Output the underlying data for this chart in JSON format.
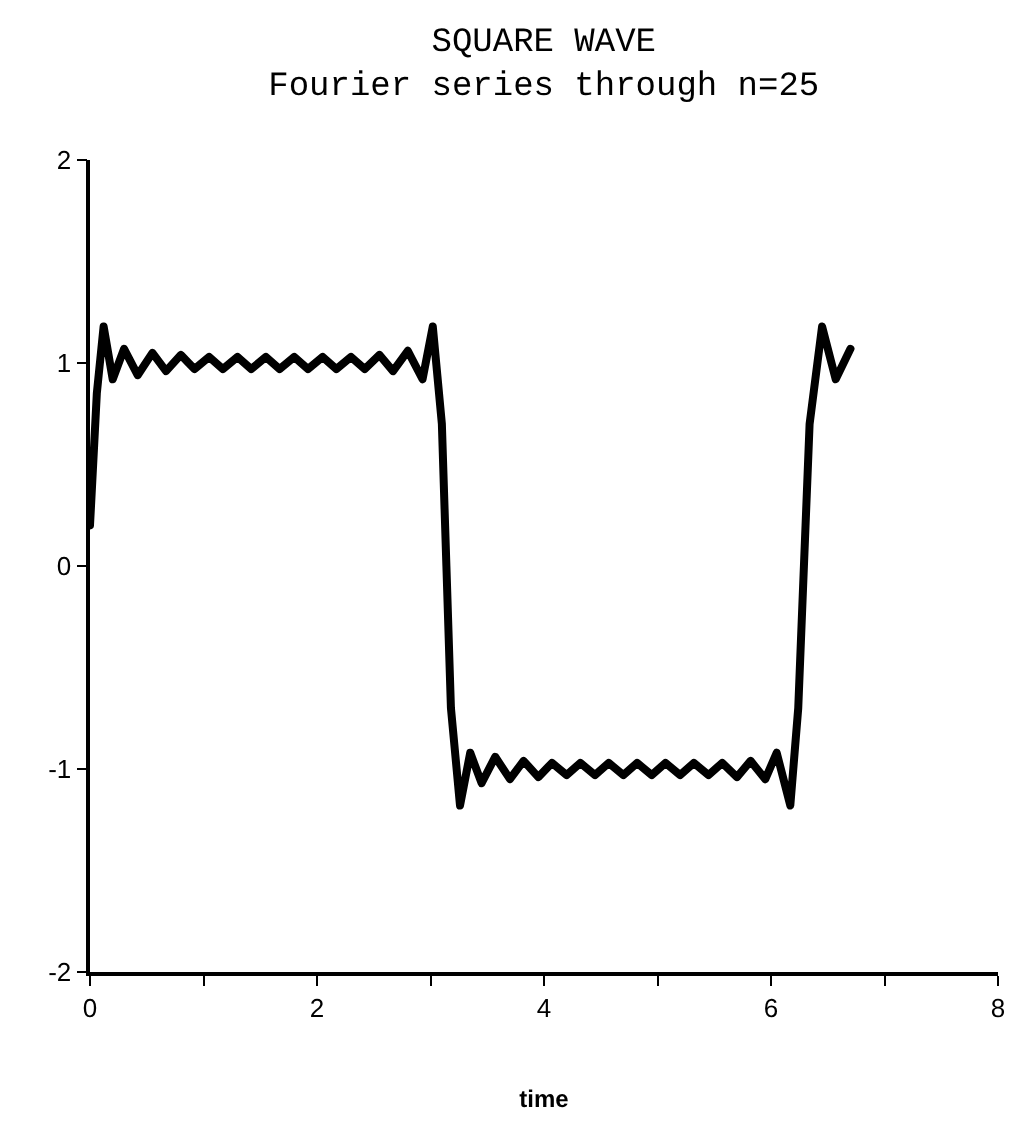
{
  "chart_data": {
    "type": "line",
    "title": "SQUARE WAVE",
    "subtitle": "Fourier series through n=25",
    "xlabel": "time",
    "x": [
      0,
      0.06,
      0.12,
      0.2,
      0.3,
      0.42,
      0.55,
      0.67,
      0.8,
      0.92,
      1.05,
      1.17,
      1.3,
      1.42,
      1.55,
      1.67,
      1.8,
      1.92,
      2.05,
      2.17,
      2.3,
      2.42,
      2.55,
      2.67,
      2.8,
      2.93,
      3.02,
      3.1,
      3.14,
      3.18,
      3.26,
      3.35,
      3.45,
      3.57,
      3.7,
      3.82,
      3.95,
      4.07,
      4.2,
      4.32,
      4.45,
      4.57,
      4.7,
      4.82,
      4.95,
      5.07,
      5.2,
      5.32,
      5.45,
      5.57,
      5.7,
      5.82,
      5.95,
      6.05,
      6.17,
      6.24,
      6.29,
      6.34,
      6.45,
      6.57,
      6.7
    ],
    "series": [
      {
        "color": "#000000",
        "values": [
          0.2,
          0.85,
          1.18,
          0.92,
          1.07,
          0.94,
          1.05,
          0.96,
          1.04,
          0.97,
          1.03,
          0.97,
          1.03,
          0.97,
          1.03,
          0.97,
          1.03,
          0.97,
          1.03,
          0.97,
          1.03,
          0.97,
          1.04,
          0.96,
          1.06,
          0.92,
          1.18,
          0.7,
          0,
          -0.7,
          -1.18,
          -0.92,
          -1.07,
          -0.94,
          -1.05,
          -0.96,
          -1.04,
          -0.97,
          -1.03,
          -0.97,
          -1.03,
          -0.97,
          -1.03,
          -0.97,
          -1.03,
          -0.97,
          -1.03,
          -0.97,
          -1.03,
          -0.97,
          -1.04,
          -0.96,
          -1.05,
          -0.92,
          -1.18,
          -0.7,
          0,
          0.7,
          1.18,
          0.92,
          1.07
        ]
      }
    ],
    "xlim": [
      0,
      8
    ],
    "xticks": [
      0,
      {
        "value": 1,
        "label": null
      },
      2,
      {
        "value": 3,
        "label": null
      },
      4,
      {
        "value": 5,
        "label": null
      },
      6,
      {
        "value": 7,
        "label": null
      },
      8
    ],
    "ylim": [
      -2,
      2
    ],
    "yticks": [
      -2,
      -1,
      0,
      1,
      2
    ],
    "marker": "none",
    "line_style": "solid"
  }
}
